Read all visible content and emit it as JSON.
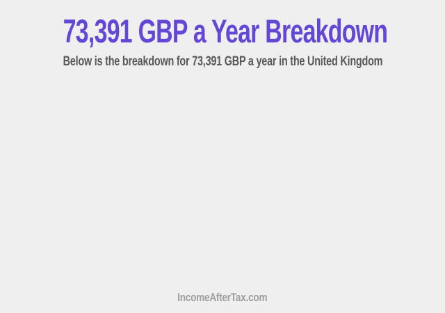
{
  "page": {
    "title": "73,391 GBP a Year Breakdown",
    "subtitle": "Below is the breakdown for 73,391 GBP a year in the United Kingdom",
    "footer_brand": "IncomeAfterTax.com"
  },
  "colors": {
    "background": "#efefef",
    "title": "#6448d5",
    "subtitle": "#58595b",
    "footer": "#9e9e9e"
  }
}
